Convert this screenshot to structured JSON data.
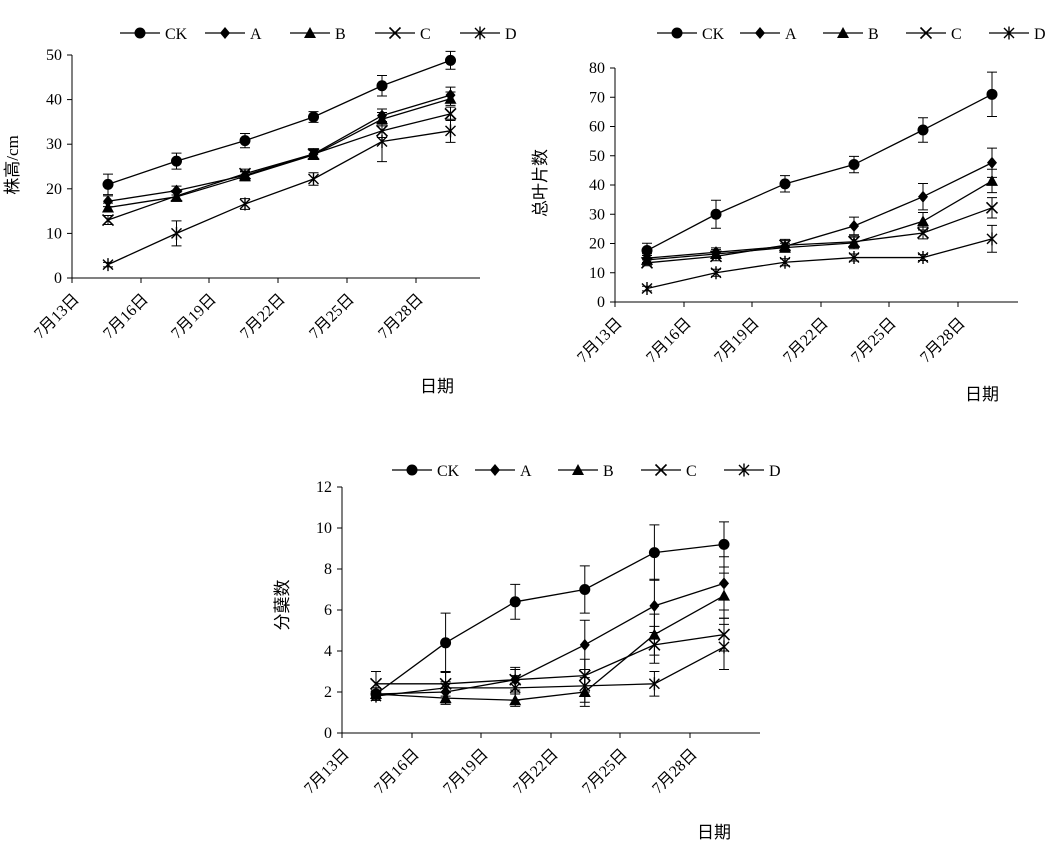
{
  "chart_data": [
    {
      "type": "line",
      "title": "",
      "xlabel": "日期",
      "ylabel": "株高/cm",
      "ylim": [
        0,
        50
      ],
      "yticks": [
        0,
        10,
        20,
        30,
        40,
        50
      ],
      "xticks": [
        "7月13日",
        "7月16日",
        "7月19日",
        "7月22日",
        "7月25日",
        "7月28日"
      ],
      "legend": "top",
      "series": [
        {
          "name": "CK",
          "marker": "circle",
          "values": [
            21.0,
            26.2,
            30.8,
            36.1,
            43.1,
            48.8
          ],
          "errors": [
            2.3,
            1.8,
            1.6,
            1.2,
            2.3,
            2.0
          ]
        },
        {
          "name": "A",
          "marker": "diamond",
          "values": [
            17.2,
            19.6,
            23.0,
            27.8,
            36.4,
            41.0
          ],
          "errors": [
            1.2,
            1.0,
            1.0,
            1.0,
            1.5,
            1.8
          ]
        },
        {
          "name": "B",
          "marker": "triangle",
          "values": [
            15.8,
            18.2,
            22.8,
            27.6,
            35.6,
            40.2
          ],
          "errors": [
            1.0,
            1.0,
            1.0,
            1.0,
            1.5,
            1.5
          ]
        },
        {
          "name": "C",
          "marker": "x",
          "values": [
            13.0,
            18.4,
            23.4,
            27.8,
            33.0,
            36.8
          ],
          "errors": [
            1.0,
            1.0,
            1.0,
            1.2,
            1.5,
            1.5
          ]
        },
        {
          "name": "D",
          "marker": "star",
          "values": [
            3.0,
            10.0,
            16.6,
            22.2,
            30.6,
            33.0
          ],
          "errors": [
            0.5,
            2.8,
            1.2,
            1.4,
            4.5,
            2.6
          ]
        }
      ]
    },
    {
      "type": "line",
      "title": "",
      "xlabel": "日期",
      "ylabel": "总叶片数",
      "ylim": [
        0,
        80
      ],
      "yticks": [
        0,
        10,
        20,
        30,
        40,
        50,
        60,
        70,
        80
      ],
      "xticks": [
        "7月13日",
        "7月16日",
        "7月19日",
        "7月22日",
        "7月25日",
        "7月28日"
      ],
      "legend": "top",
      "series": [
        {
          "name": "CK",
          "marker": "circle",
          "values": [
            17.6,
            30.0,
            40.4,
            47.0,
            58.8,
            71.0
          ],
          "errors": [
            2.5,
            4.8,
            2.8,
            2.8,
            4.2,
            7.6
          ]
        },
        {
          "name": "A",
          "marker": "diamond",
          "values": [
            15.0,
            17.0,
            19.0,
            26.0,
            36.0,
            47.6
          ],
          "errors": [
            1.5,
            1.5,
            2.0,
            3.0,
            4.5,
            5.0
          ]
        },
        {
          "name": "B",
          "marker": "triangle",
          "values": [
            14.4,
            16.4,
            18.6,
            20.2,
            27.6,
            41.4
          ],
          "errors": [
            1.5,
            1.5,
            1.5,
            2.0,
            3.0,
            4.0
          ]
        },
        {
          "name": "C",
          "marker": "x",
          "values": [
            13.4,
            15.6,
            19.4,
            20.6,
            23.6,
            32.2
          ],
          "errors": [
            1.0,
            1.5,
            2.0,
            2.0,
            2.0,
            3.5
          ]
        },
        {
          "name": "D",
          "marker": "star",
          "values": [
            4.6,
            10.0,
            13.6,
            15.2,
            15.2,
            21.6
          ],
          "errors": [
            0.8,
            1.2,
            1.2,
            1.2,
            1.0,
            4.6
          ]
        }
      ]
    },
    {
      "type": "line",
      "title": "",
      "xlabel": "日期",
      "ylabel": "分蘖数",
      "ylim": [
        0,
        12
      ],
      "yticks": [
        0,
        2,
        4,
        6,
        8,
        10,
        12
      ],
      "xticks": [
        "7月13日",
        "7月16日",
        "7月19日",
        "7月22日",
        "7月25日",
        "7月28日"
      ],
      "legend": "top",
      "series": [
        {
          "name": "CK",
          "marker": "circle",
          "values": [
            1.9,
            4.4,
            6.4,
            7.0,
            8.8,
            9.2
          ],
          "errors": [
            0.3,
            1.45,
            0.85,
            1.15,
            1.35,
            1.1
          ]
        },
        {
          "name": "A",
          "marker": "diamond",
          "values": [
            1.9,
            2.0,
            2.6,
            4.3,
            6.2,
            7.3
          ],
          "errors": [
            0.3,
            0.5,
            0.5,
            1.2,
            1.3,
            1.3
          ]
        },
        {
          "name": "B",
          "marker": "triangle",
          "values": [
            1.9,
            1.7,
            1.6,
            2.0,
            4.8,
            6.7
          ],
          "errors": [
            0.2,
            0.3,
            0.3,
            0.7,
            1.0,
            1.1
          ]
        },
        {
          "name": "C",
          "marker": "x",
          "values": [
            2.4,
            2.4,
            2.6,
            2.8,
            4.3,
            4.8
          ],
          "errors": [
            0.6,
            0.6,
            0.6,
            0.8,
            0.9,
            0.8
          ]
        },
        {
          "name": "D",
          "marker": "star",
          "values": [
            1.8,
            2.2,
            2.2,
            2.3,
            2.4,
            4.2
          ],
          "errors": [
            0.2,
            0.8,
            0.6,
            0.8,
            0.6,
            1.1
          ]
        }
      ]
    }
  ]
}
